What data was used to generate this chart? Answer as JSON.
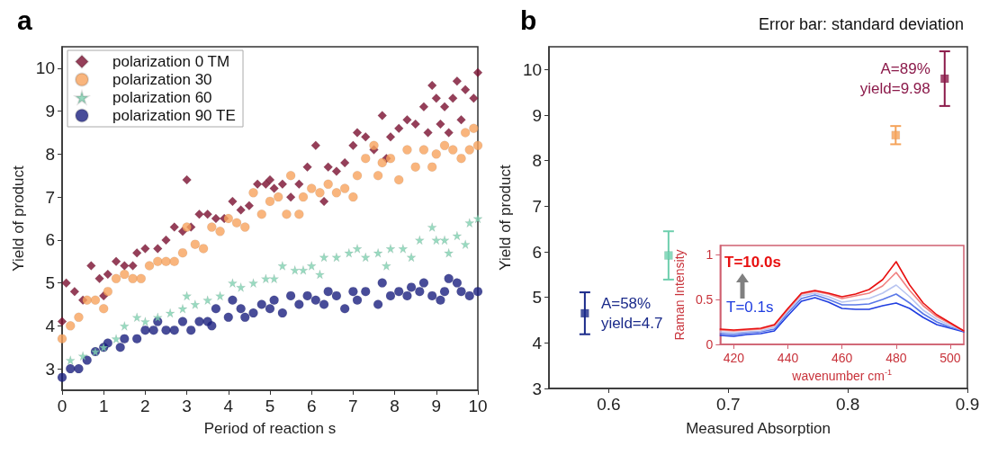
{
  "chart_data": [
    {
      "type": "scatter",
      "title": "a",
      "xlabel": "Period of reaction s",
      "ylabel": "Yield of product",
      "xlim": [
        0,
        10
      ],
      "xticks": [
        0,
        1,
        2,
        3,
        4,
        5,
        6,
        7,
        8,
        9,
        10
      ],
      "ylim": [
        2.5,
        10.5
      ],
      "yticks": [
        3,
        4,
        5,
        6,
        7,
        8,
        9,
        10
      ],
      "grid": false,
      "legend": "top left",
      "series": [
        {
          "name": "polarization 0 TM",
          "color": "#7a0f30",
          "marker": "diamond",
          "x": [
            0,
            0.1,
            0.3,
            0.5,
            0.7,
            0.9,
            1.0,
            1.1,
            1.3,
            1.5,
            1.7,
            1.8,
            2.0,
            2.3,
            2.5,
            2.7,
            2.9,
            3.0,
            3.1,
            3.3,
            3.5,
            3.7,
            3.9,
            4.1,
            4.3,
            4.5,
            4.7,
            4.9,
            5.0,
            5.1,
            5.3,
            5.5,
            5.7,
            5.9,
            6.1,
            6.3,
            6.4,
            6.6,
            6.8,
            7.0,
            7.1,
            7.3,
            7.5,
            7.7,
            7.8,
            7.9,
            8.1,
            8.3,
            8.5,
            8.7,
            8.8,
            8.9,
            9.0,
            9.1,
            9.2,
            9.3,
            9.4,
            9.5,
            9.6,
            9.7,
            9.9,
            10
          ],
          "values": [
            4.1,
            5.0,
            4.8,
            4.6,
            5.4,
            5.1,
            4.7,
            5.2,
            5.5,
            5.4,
            5.4,
            5.7,
            5.8,
            5.8,
            6.0,
            6.3,
            6.2,
            7.4,
            6.3,
            6.6,
            6.6,
            6.5,
            6.5,
            6.9,
            6.7,
            6.8,
            7.3,
            7.3,
            7.4,
            7.2,
            7.3,
            7.0,
            7.3,
            7.7,
            8.2,
            6.9,
            7.7,
            7.6,
            7.8,
            8.2,
            8.5,
            8.4,
            8.1,
            8.9,
            7.9,
            8.4,
            8.6,
            8.8,
            8.7,
            9.1,
            8.5,
            9.6,
            9.3,
            8.7,
            9.1,
            8.5,
            9.3,
            9.7,
            8.8,
            9.5,
            9.3,
            9.9
          ]
        },
        {
          "name": "polarization 30",
          "color": "#f7a35c",
          "marker": "circle",
          "x": [
            0,
            0.2,
            0.4,
            0.6,
            0.8,
            1.0,
            1.1,
            1.3,
            1.5,
            1.7,
            1.9,
            2.1,
            2.3,
            2.5,
            2.7,
            2.9,
            3.0,
            3.2,
            3.4,
            3.6,
            3.8,
            4.0,
            4.2,
            4.4,
            4.6,
            4.8,
            5.0,
            5.2,
            5.4,
            5.5,
            5.7,
            5.8,
            6.0,
            6.2,
            6.4,
            6.6,
            6.8,
            7.0,
            7.1,
            7.3,
            7.5,
            7.6,
            7.7,
            7.9,
            8.1,
            8.3,
            8.5,
            8.7,
            8.9,
            9.0,
            9.2,
            9.4,
            9.6,
            9.7,
            9.8,
            9.9,
            10
          ],
          "values": [
            3.7,
            4.0,
            4.2,
            4.6,
            4.6,
            4.4,
            4.8,
            5.1,
            5.2,
            5.1,
            5.1,
            5.4,
            5.5,
            5.5,
            5.5,
            5.7,
            6.3,
            5.9,
            5.8,
            6.3,
            6.2,
            6.5,
            6.4,
            6.3,
            7.1,
            6.6,
            6.9,
            7.0,
            6.6,
            7.5,
            6.6,
            7.0,
            7.2,
            7.1,
            7.3,
            7.1,
            7.2,
            7.0,
            7.5,
            7.9,
            8.2,
            7.5,
            7.8,
            7.9,
            7.4,
            8.1,
            7.7,
            8.1,
            7.7,
            8.0,
            8.2,
            8.1,
            7.9,
            8.5,
            8.1,
            8.6,
            8.2
          ]
        },
        {
          "name": "polarization 60",
          "color": "#7fd1b0",
          "marker": "star",
          "x": [
            0.2,
            0.5,
            0.8,
            1.0,
            1.3,
            1.5,
            1.8,
            2.0,
            2.3,
            2.6,
            2.9,
            3.0,
            3.2,
            3.5,
            3.8,
            4.1,
            4.3,
            4.6,
            4.9,
            5.1,
            5.3,
            5.6,
            5.8,
            6.0,
            6.2,
            6.3,
            6.6,
            6.9,
            7.1,
            7.3,
            7.6,
            7.8,
            7.9,
            8.2,
            8.4,
            8.6,
            8.9,
            9.0,
            9.2,
            9.3,
            9.5,
            9.7,
            9.8,
            10
          ],
          "values": [
            3.2,
            3.3,
            3.4,
            3.5,
            3.7,
            4.0,
            4.2,
            4.1,
            4.2,
            4.3,
            4.4,
            4.7,
            4.5,
            4.6,
            4.7,
            5.0,
            4.9,
            5.0,
            5.1,
            5.1,
            5.4,
            5.3,
            5.3,
            5.4,
            5.2,
            5.6,
            5.6,
            5.7,
            5.8,
            5.6,
            5.7,
            5.4,
            5.8,
            5.8,
            5.6,
            6.0,
            6.3,
            6.0,
            6.0,
            5.7,
            6.1,
            5.9,
            6.4,
            6.5
          ]
        },
        {
          "name": "polarization 90 TE",
          "color": "#1a1f80",
          "marker": "circle",
          "x": [
            0,
            0.2,
            0.4,
            0.6,
            0.8,
            1.0,
            1.1,
            1.4,
            1.5,
            1.8,
            2.0,
            2.2,
            2.3,
            2.5,
            2.7,
            2.9,
            3.1,
            3.3,
            3.5,
            3.6,
            3.7,
            4.0,
            4.1,
            4.3,
            4.4,
            4.6,
            4.8,
            5.0,
            5.1,
            5.3,
            5.5,
            5.7,
            5.9,
            6.1,
            6.3,
            6.4,
            6.6,
            6.8,
            7.0,
            7.1,
            7.3,
            7.6,
            7.7,
            7.9,
            8.1,
            8.3,
            8.4,
            8.6,
            8.7,
            8.9,
            9.1,
            9.2,
            9.3,
            9.5,
            9.6,
            9.8,
            10
          ],
          "values": [
            2.8,
            3.0,
            3.0,
            3.2,
            3.4,
            3.5,
            3.6,
            3.5,
            3.7,
            3.7,
            3.9,
            3.9,
            4.1,
            3.9,
            3.9,
            4.1,
            3.9,
            4.1,
            4.1,
            4.0,
            4.4,
            4.2,
            4.6,
            4.4,
            4.2,
            4.3,
            4.5,
            4.4,
            4.6,
            4.3,
            4.7,
            4.5,
            4.7,
            4.6,
            4.5,
            4.8,
            4.7,
            4.4,
            4.8,
            4.6,
            4.8,
            4.5,
            5.0,
            4.7,
            4.8,
            4.7,
            4.9,
            4.8,
            5.0,
            4.7,
            4.6,
            4.8,
            5.1,
            5.0,
            4.8,
            4.7,
            4.8
          ]
        }
      ]
    },
    {
      "type": "scatter",
      "title": "b",
      "xlabel": "Measured Absorption",
      "ylabel": "Yield of product",
      "xlim": [
        0.55,
        0.9
      ],
      "xticks": [
        0.6,
        0.7,
        0.8,
        0.9
      ],
      "ylim": [
        3,
        10.5
      ],
      "yticks": [
        3,
        4,
        5,
        6,
        7,
        8,
        9,
        10
      ],
      "grid": false,
      "marker": "square",
      "annotations": [
        "Error bar: standard deviation",
        {
          "text": "A=58%\nyield=4.7",
          "x": 0.58,
          "y": 4.65
        },
        {
          "text": "A=89%\nyield=9.98",
          "x": 0.881,
          "y": 9.8
        }
      ],
      "x": [
        0.58,
        0.65,
        0.84,
        0.881
      ],
      "values": [
        4.65,
        5.92,
        8.56,
        9.8
      ],
      "errors": [
        0.46,
        0.53,
        0.2,
        0.6
      ],
      "colors": [
        "#1a2a8a",
        "#6fcfae",
        "#f5a35a",
        "#8b1a4a"
      ]
    },
    {
      "type": "line",
      "xlabel": "wavenumber cm$^{-1}$",
      "ylabel": "Raman Intensity",
      "xlim": [
        415,
        505
      ],
      "xticks": [
        420,
        440,
        460,
        480,
        500
      ],
      "ylim": [
        0,
        1.1
      ],
      "yticks": [
        0,
        0.5,
        1
      ],
      "grid": false,
      "line_style": "solid",
      "annotations": [
        "T=10.0s",
        "T=0.1s"
      ],
      "x": [
        415,
        420,
        425,
        430,
        435,
        440,
        445,
        450,
        455,
        460,
        465,
        470,
        475,
        480,
        485,
        490,
        495,
        500,
        505
      ],
      "series": [
        {
          "color": "#1f3de0",
          "values": [
            0.1,
            0.09,
            0.11,
            0.12,
            0.15,
            0.32,
            0.48,
            0.52,
            0.47,
            0.4,
            0.39,
            0.39,
            0.43,
            0.46,
            0.4,
            0.3,
            0.22,
            0.18,
            0.14
          ]
        },
        {
          "color": "#5a78e8",
          "values": [
            0.12,
            0.11,
            0.13,
            0.14,
            0.17,
            0.35,
            0.51,
            0.55,
            0.5,
            0.44,
            0.44,
            0.45,
            0.5,
            0.56,
            0.46,
            0.34,
            0.25,
            0.19,
            0.15
          ]
        },
        {
          "color": "#b8c4f0",
          "values": [
            0.14,
            0.13,
            0.14,
            0.15,
            0.19,
            0.37,
            0.54,
            0.57,
            0.53,
            0.47,
            0.49,
            0.51,
            0.57,
            0.66,
            0.53,
            0.38,
            0.28,
            0.21,
            0.15
          ]
        },
        {
          "color": "#f08080",
          "values": [
            0.16,
            0.15,
            0.16,
            0.17,
            0.21,
            0.39,
            0.56,
            0.59,
            0.56,
            0.51,
            0.54,
            0.57,
            0.65,
            0.8,
            0.6,
            0.43,
            0.31,
            0.23,
            0.15
          ]
        },
        {
          "color": "#e81010",
          "values": [
            0.17,
            0.16,
            0.17,
            0.18,
            0.22,
            0.4,
            0.57,
            0.6,
            0.57,
            0.53,
            0.56,
            0.61,
            0.72,
            0.92,
            0.66,
            0.46,
            0.33,
            0.24,
            0.15
          ]
        }
      ]
    }
  ]
}
